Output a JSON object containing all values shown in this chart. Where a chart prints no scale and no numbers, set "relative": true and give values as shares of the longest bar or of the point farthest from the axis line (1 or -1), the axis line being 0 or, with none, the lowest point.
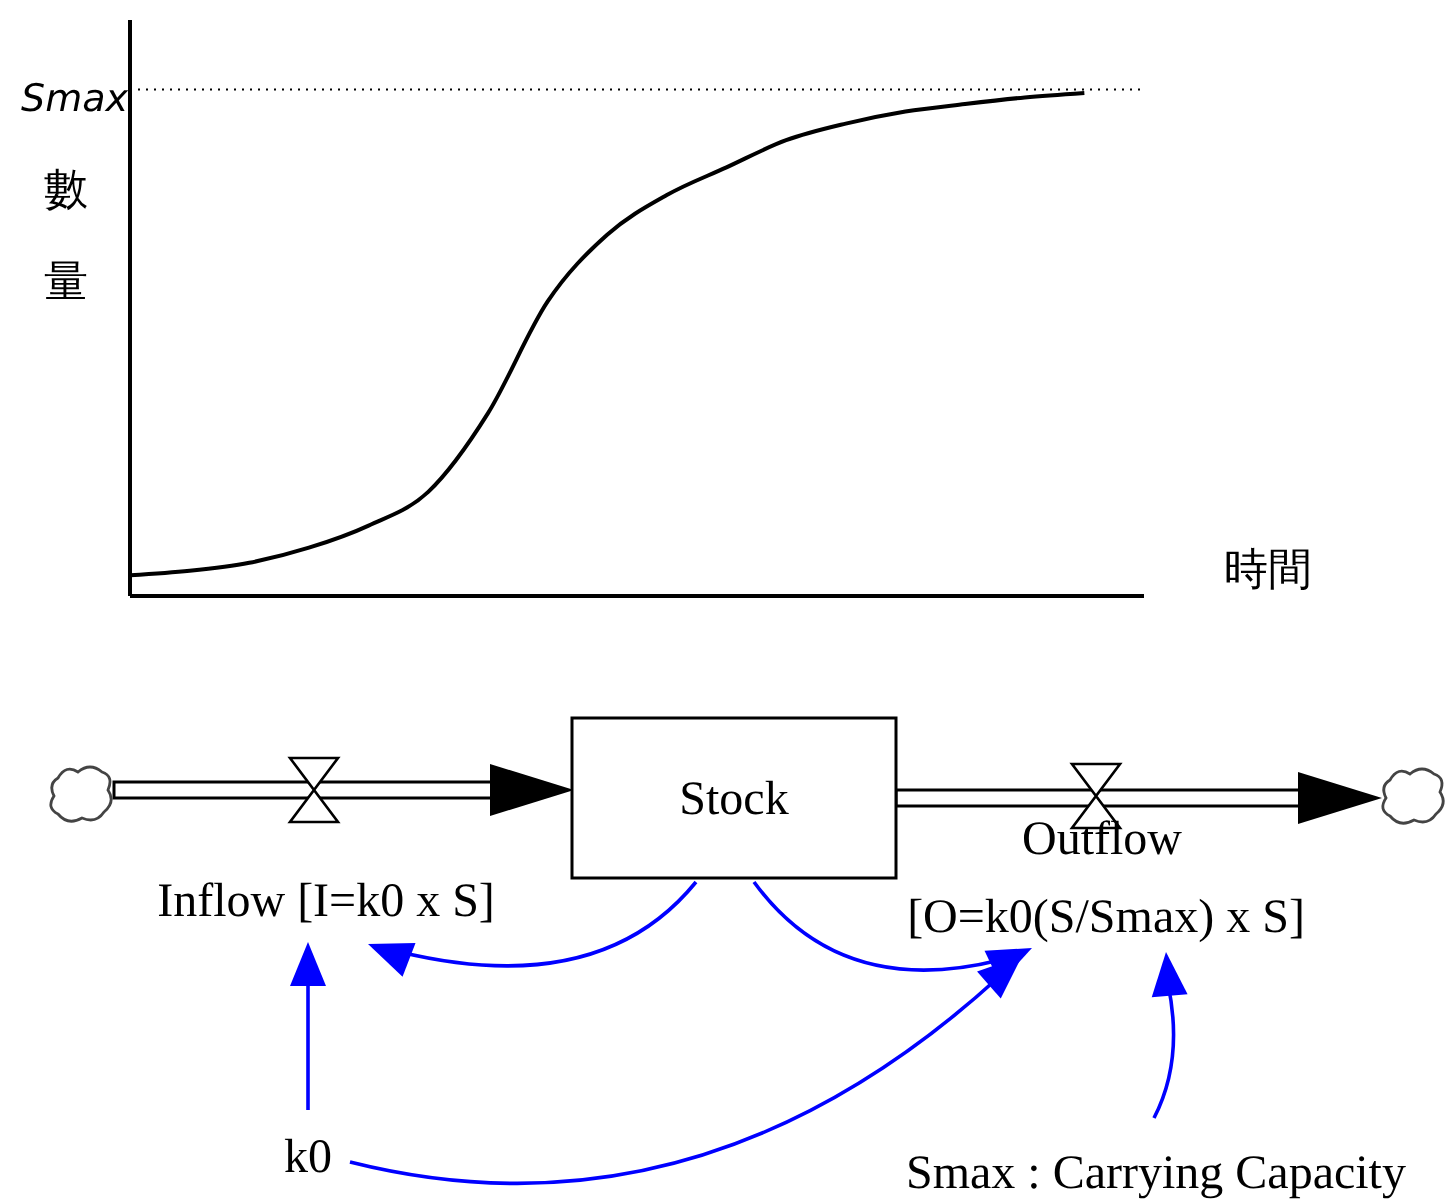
{
  "chart_data": [
    {
      "type": "line",
      "relative": true,
      "xlabel": "時間",
      "ylabel": "數量",
      "categories": [
        null,
        null,
        null,
        null,
        null,
        null,
        null,
        null,
        null,
        null,
        null,
        null,
        null,
        null,
        null,
        null,
        null,
        null
      ],
      "series": [
        {
          "color": "#000000",
          "values": [
            0.041,
            0.05,
            0.066,
            0.096,
            0.14,
            0.207,
            0.363,
            0.585,
            0.718,
            0.797,
            0.852,
            0.906,
            0.939,
            0.963,
            0.978,
            0.991,
            1,
            null
          ]
        }
      ],
      "ref_lines": [
        {
          "axis": "y",
          "value": 1.007,
          "label": "Smax",
          "color": "#000000",
          "line_style": "dotted"
        }
      ],
      "marker": "none",
      "line_style": "solid",
      "grid": false,
      "legend": false
    },
    {
      "type": "other",
      "annotations": [
        "Stock",
        "Inflow [I=k0 x S]",
        "Outflow",
        "[O=k0(S/Smax) x S]",
        "k0",
        "Smax : Carrying Capacity"
      ]
    }
  ]
}
